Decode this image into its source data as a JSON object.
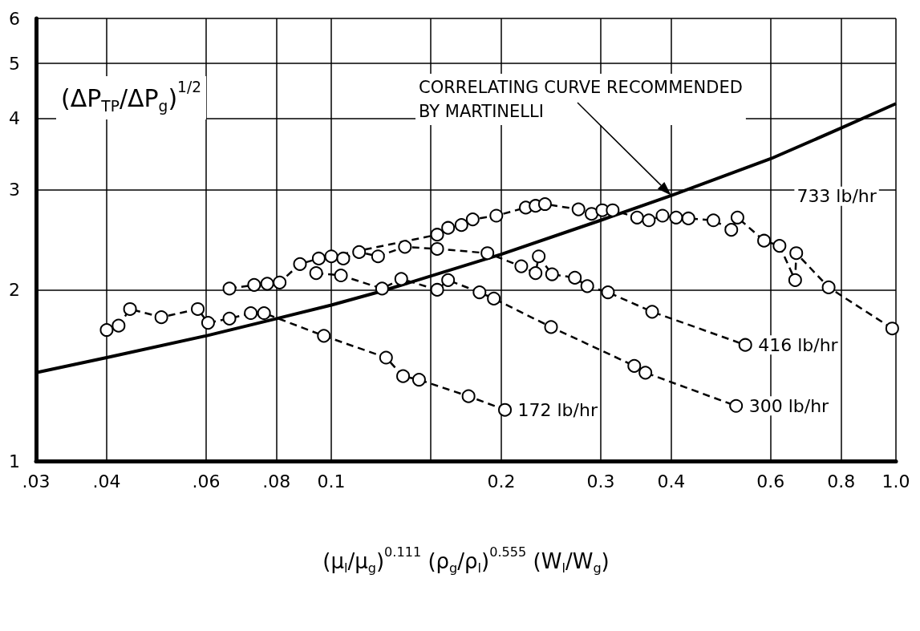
{
  "chart_data": {
    "type": "line",
    "xlabel": "(μ$_{l}$/μ$_{g}$)$^{0.111}$ (ρ$_{g}$/ρ$_{l}$)$^{0.555}$ (W$_{l}$/W$_{g}$)",
    "ylabel": "(ΔP$_{TP}$/ΔP$_{g}$)$^{1/2}$",
    "log": "xy",
    "grid": true,
    "legend": false,
    "marker": "circle",
    "xlim": [
      0.03,
      1.0
    ],
    "xticks": [
      {
        "value": 0.03,
        "label": ".03"
      },
      {
        "value": 0.04,
        "label": ".04"
      },
      {
        "value": 0.06,
        "label": ".06"
      },
      {
        "value": 0.08,
        "label": ".08"
      },
      0.1,
      {
        "value": 0.15,
        "label": null
      },
      0.2,
      0.3,
      0.4,
      0.6,
      0.8,
      {
        "value": 1.0,
        "label": "1.0"
      }
    ],
    "ylim": [
      1,
      6
    ],
    "yticks": [
      1,
      2,
      3,
      4,
      5,
      6
    ],
    "annotations": [
      "CORRELATING CURVE RECOMMENDED\nBY MARTINELLI"
    ],
    "series": [
      {
        "type": "line",
        "color": "#000000",
        "marker": "none",
        "line_style": "solid",
        "x": [
          0.03,
          0.04,
          0.06,
          0.08,
          0.1,
          0.123,
          0.2,
          0.3,
          0.4,
          0.6,
          0.8,
          1.0
        ],
        "values": [
          1.43,
          1.52,
          1.66,
          1.78,
          1.88,
          1.99,
          2.31,
          2.65,
          2.93,
          3.4,
          3.85,
          4.25
        ]
      },
      {
        "name": "733 lb/hr",
        "color": "#000000",
        "line_style": "dashed",
        "x": [
          0.066,
          0.073,
          0.077,
          0.081,
          0.088,
          0.095,
          0.1,
          0.154,
          0.161,
          0.17,
          0.178,
          0.196,
          0.221,
          0.23,
          0.239,
          0.274,
          0.289,
          0.302,
          0.315,
          0.348,
          0.365,
          0.386,
          0.408,
          0.429,
          0.475,
          0.511,
          0.524,
          0.584,
          0.622,
          0.663,
          0.666,
          0.76,
          0.985
        ],
        "values": [
          2.01,
          2.04,
          2.05,
          2.06,
          2.22,
          2.27,
          2.29,
          2.5,
          2.57,
          2.6,
          2.66,
          2.7,
          2.79,
          2.81,
          2.83,
          2.77,
          2.72,
          2.76,
          2.76,
          2.68,
          2.65,
          2.7,
          2.68,
          2.67,
          2.65,
          2.55,
          2.68,
          2.44,
          2.39,
          2.08,
          2.32,
          2.02,
          1.71
        ]
      },
      {
        "name": "416 lb/hr",
        "color": "#000000",
        "line_style": "dashed",
        "x": [
          0.105,
          0.112,
          0.121,
          0.135,
          0.154,
          0.189,
          0.217,
          0.23,
          0.233,
          0.246,
          0.27,
          0.284,
          0.309,
          0.37,
          0.541
        ],
        "values": [
          2.27,
          2.33,
          2.29,
          2.38,
          2.36,
          2.32,
          2.2,
          2.14,
          2.29,
          2.13,
          2.1,
          2.03,
          1.98,
          1.83,
          1.6
        ]
      },
      {
        "name": "300 lb/hr",
        "color": "#000000",
        "line_style": "dashed",
        "x": [
          0.094,
          0.104,
          0.123,
          0.133,
          0.154,
          0.161,
          0.183,
          0.194,
          0.245,
          0.344,
          0.36,
          0.521
        ],
        "values": [
          2.14,
          2.12,
          2.01,
          2.09,
          2.0,
          2.08,
          1.98,
          1.93,
          1.72,
          1.47,
          1.43,
          1.25
        ]
      },
      {
        "name": "172 lb/hr",
        "color": "#000000",
        "line_style": "dashed",
        "x": [
          0.04,
          0.042,
          0.044,
          0.05,
          0.058,
          0.0605,
          0.066,
          0.072,
          0.076,
          0.097,
          0.125,
          0.134,
          0.143,
          0.175,
          0.203
        ],
        "values": [
          1.7,
          1.73,
          1.85,
          1.79,
          1.85,
          1.75,
          1.78,
          1.82,
          1.82,
          1.66,
          1.52,
          1.41,
          1.39,
          1.3,
          1.23
        ]
      }
    ]
  }
}
